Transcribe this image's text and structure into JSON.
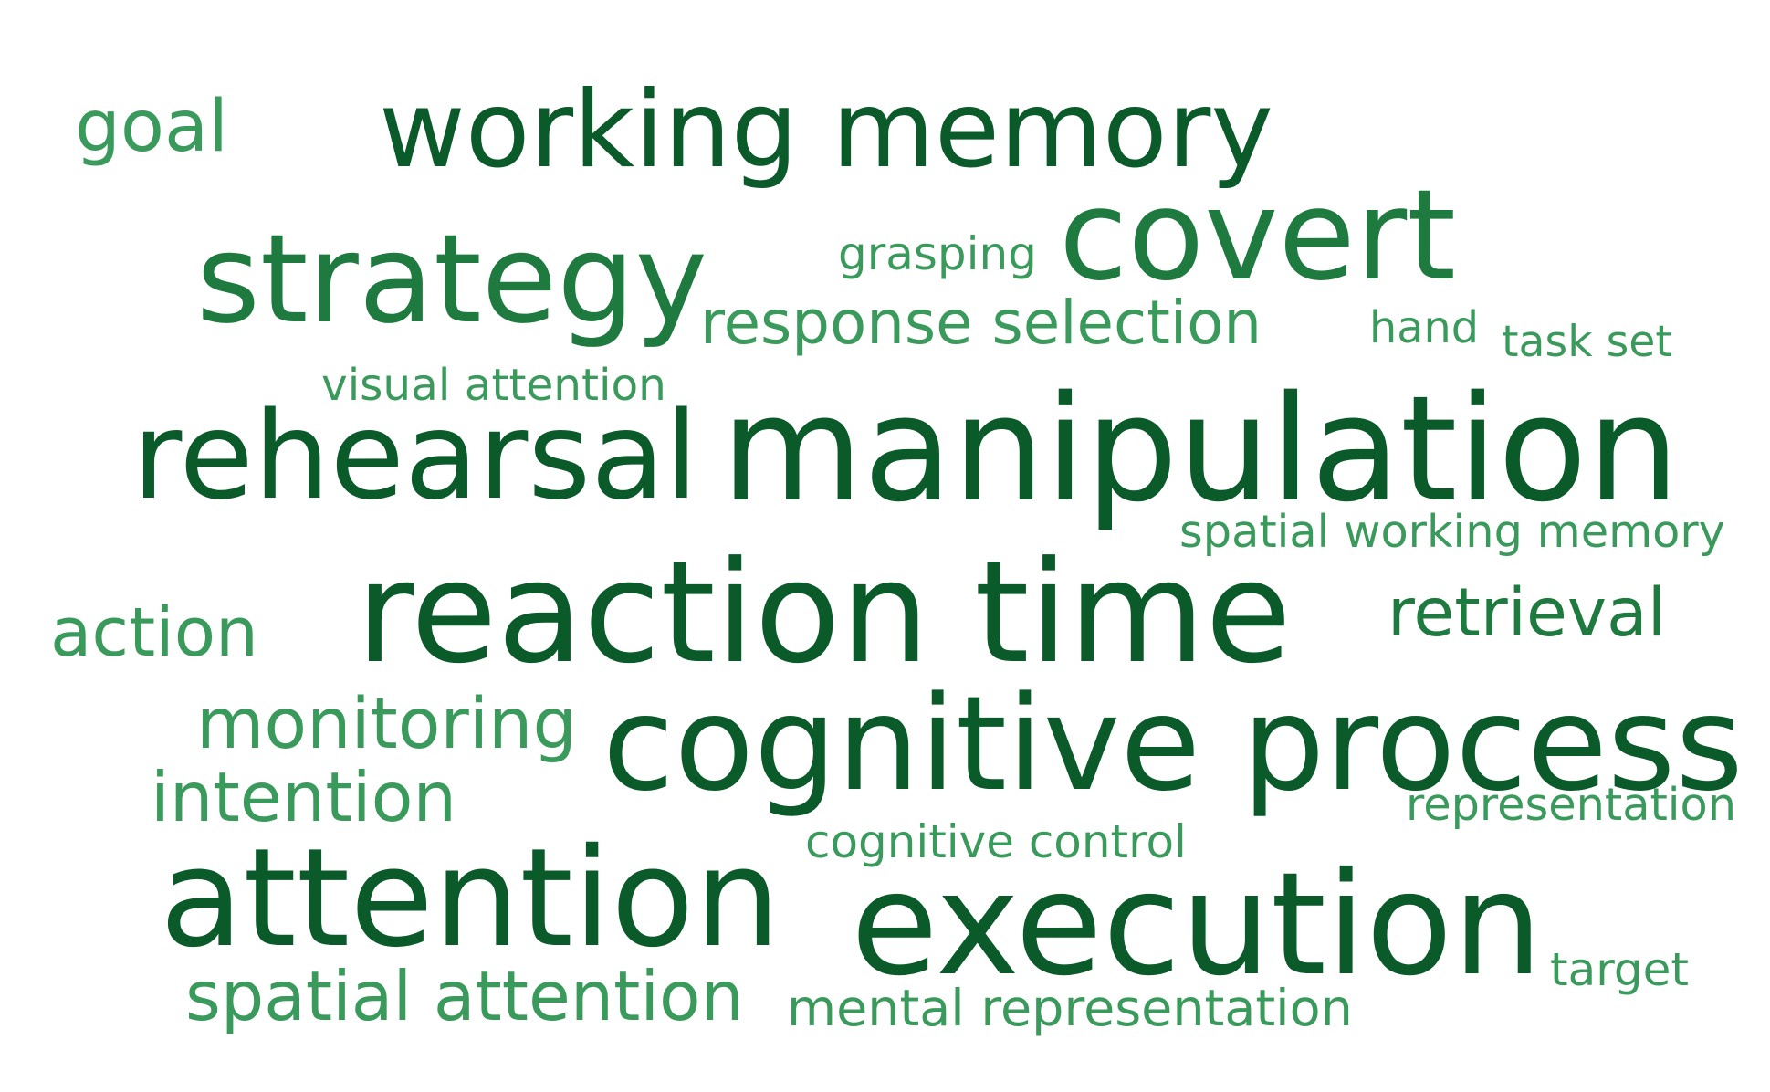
{
  "colors": {
    "background": "#ffffff",
    "dark": "#0b5a2a",
    "medium": "#1e7a3e",
    "light": "#3a9a5c"
  },
  "words": [
    {
      "id": "working-memory",
      "text": "working memory",
      "tone": "dark",
      "weight": 10
    },
    {
      "id": "manipulation",
      "text": "manipulation",
      "tone": "dark",
      "weight": 10
    },
    {
      "id": "reaction-time",
      "text": "reaction time",
      "tone": "dark",
      "weight": 10
    },
    {
      "id": "cognitive-process",
      "text": "cognitive process",
      "tone": "dark",
      "weight": 9
    },
    {
      "id": "execution",
      "text": "execution",
      "tone": "dark",
      "weight": 9
    },
    {
      "id": "attention",
      "text": "attention",
      "tone": "dark",
      "weight": 9
    },
    {
      "id": "rehearsal",
      "text": "rehearsal",
      "tone": "dark",
      "weight": 9
    },
    {
      "id": "strategy",
      "text": "strategy",
      "tone": "medium",
      "weight": 8
    },
    {
      "id": "covert",
      "text": "covert",
      "tone": "medium",
      "weight": 8
    },
    {
      "id": "retrieval",
      "text": "retrieval",
      "tone": "medium",
      "weight": 5
    },
    {
      "id": "response-selection",
      "text": "response selection",
      "tone": "light",
      "weight": 5
    },
    {
      "id": "monitoring",
      "text": "monitoring",
      "tone": "light",
      "weight": 5
    },
    {
      "id": "intention",
      "text": "intention",
      "tone": "light",
      "weight": 5
    },
    {
      "id": "action",
      "text": "action",
      "tone": "light",
      "weight": 5
    },
    {
      "id": "spatial-attention",
      "text": "spatial attention",
      "tone": "light",
      "weight": 5
    },
    {
      "id": "goal",
      "text": "goal",
      "tone": "light",
      "weight": 5
    },
    {
      "id": "mental-representation",
      "text": "mental representation",
      "tone": "light",
      "weight": 4
    },
    {
      "id": "spatial-working-memory",
      "text": "spatial working memory",
      "tone": "light",
      "weight": 3
    },
    {
      "id": "representation",
      "text": "representation",
      "tone": "light",
      "weight": 3
    },
    {
      "id": "cognitive-control",
      "text": "cognitive control",
      "tone": "light",
      "weight": 3
    },
    {
      "id": "visual-attention",
      "text": "visual attention",
      "tone": "light",
      "weight": 3
    },
    {
      "id": "grasping",
      "text": "grasping",
      "tone": "light",
      "weight": 3
    },
    {
      "id": "hand",
      "text": "hand",
      "tone": "light",
      "weight": 3
    },
    {
      "id": "task-set",
      "text": "task set",
      "tone": "light",
      "weight": 3
    },
    {
      "id": "target",
      "text": "target",
      "tone": "light",
      "weight": 3
    }
  ]
}
